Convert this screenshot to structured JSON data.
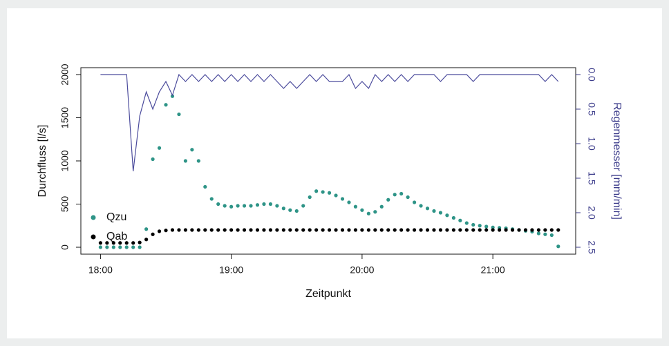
{
  "chart_data": {
    "type": "scatter",
    "x_label": "Zeitpunkt",
    "y_label": "Durchfluss [l/s]",
    "y2_label": "Regenmesser [mm/min]",
    "x": [
      "18:00",
      "18:03",
      "18:06",
      "18:09",
      "18:12",
      "18:15",
      "18:18",
      "18:21",
      "18:24",
      "18:27",
      "18:30",
      "18:33",
      "18:36",
      "18:39",
      "18:42",
      "18:45",
      "18:48",
      "18:51",
      "18:54",
      "18:57",
      "19:00",
      "19:03",
      "19:06",
      "19:09",
      "19:12",
      "19:15",
      "19:18",
      "19:21",
      "19:24",
      "19:27",
      "19:30",
      "19:33",
      "19:36",
      "19:39",
      "19:42",
      "19:45",
      "19:48",
      "19:51",
      "19:54",
      "19:57",
      "20:00",
      "20:03",
      "20:06",
      "20:09",
      "20:12",
      "20:15",
      "20:18",
      "20:21",
      "20:24",
      "20:27",
      "20:30",
      "20:33",
      "20:36",
      "20:39",
      "20:42",
      "20:45",
      "20:48",
      "20:51",
      "20:54",
      "20:57",
      "21:00",
      "21:03",
      "21:06",
      "21:09",
      "21:12",
      "21:15",
      "21:18",
      "21:21",
      "21:24",
      "21:27",
      "21:30"
    ],
    "series": [
      {
        "name": "Qzu",
        "color": "#2e9487",
        "mark": "point",
        "values": [
          0,
          0,
          0,
          0,
          0,
          0,
          0,
          210,
          1020,
          1150,
          1650,
          1750,
          1540,
          1000,
          1130,
          1000,
          700,
          560,
          500,
          480,
          470,
          480,
          480,
          480,
          490,
          500,
          500,
          480,
          450,
          430,
          420,
          480,
          580,
          650,
          640,
          630,
          600,
          560,
          520,
          470,
          430,
          390,
          410,
          470,
          550,
          610,
          620,
          580,
          520,
          480,
          450,
          420,
          400,
          370,
          340,
          310,
          280,
          260,
          250,
          240,
          230,
          225,
          220,
          210,
          200,
          190,
          180,
          160,
          150,
          140,
          10
        ]
      },
      {
        "name": "Qab",
        "color": "#000000",
        "mark": "point",
        "values": [
          50,
          50,
          50,
          50,
          50,
          50,
          55,
          90,
          150,
          185,
          195,
          200,
          200,
          200,
          200,
          200,
          200,
          200,
          200,
          200,
          200,
          200,
          200,
          200,
          200,
          200,
          200,
          200,
          200,
          200,
          200,
          200,
          200,
          200,
          200,
          200,
          200,
          200,
          200,
          200,
          200,
          200,
          200,
          200,
          200,
          200,
          200,
          200,
          200,
          200,
          200,
          200,
          200,
          200,
          200,
          200,
          200,
          200,
          200,
          200,
          200,
          200,
          200,
          200,
          200,
          200,
          200,
          200,
          200,
          200,
          200
        ]
      },
      {
        "color": "#4b4b9c",
        "mark": "line",
        "axis": "y2",
        "values": [
          0,
          0,
          0,
          0,
          0,
          1.4,
          0.6,
          0.25,
          0.5,
          0.25,
          0.1,
          0.3,
          0,
          0.1,
          0,
          0.1,
          0,
          0.1,
          0,
          0.1,
          0,
          0.1,
          0,
          0.1,
          0,
          0.1,
          0,
          0.1,
          0.2,
          0.1,
          0.2,
          0.1,
          0,
          0.1,
          0,
          0.1,
          0.1,
          0.1,
          0,
          0.2,
          0.1,
          0.2,
          0,
          0.1,
          0,
          0.1,
          0,
          0.1,
          0,
          0,
          0,
          0,
          0.1,
          0,
          0,
          0,
          0,
          0.1,
          0,
          0,
          0,
          0,
          0,
          0,
          0,
          0,
          0,
          0,
          0.1,
          0,
          0.1
        ]
      }
    ],
    "xlim": [
      "17:51",
      "21:38"
    ],
    "xticks": [
      "18:00",
      "19:00",
      "20:00",
      "21:00"
    ],
    "ylim": [
      -80,
      2080
    ],
    "yticks": [
      0,
      500,
      1000,
      1500,
      2000
    ],
    "y2lim": [
      2.6,
      -0.1
    ],
    "y2ticks": [
      {
        "value": 0,
        "label": "0.0"
      },
      0.5,
      {
        "value": 1,
        "label": "1.0"
      },
      1.5,
      {
        "value": 2,
        "label": "2.0"
      },
      2.5
    ],
    "legend": "bottomleft"
  }
}
